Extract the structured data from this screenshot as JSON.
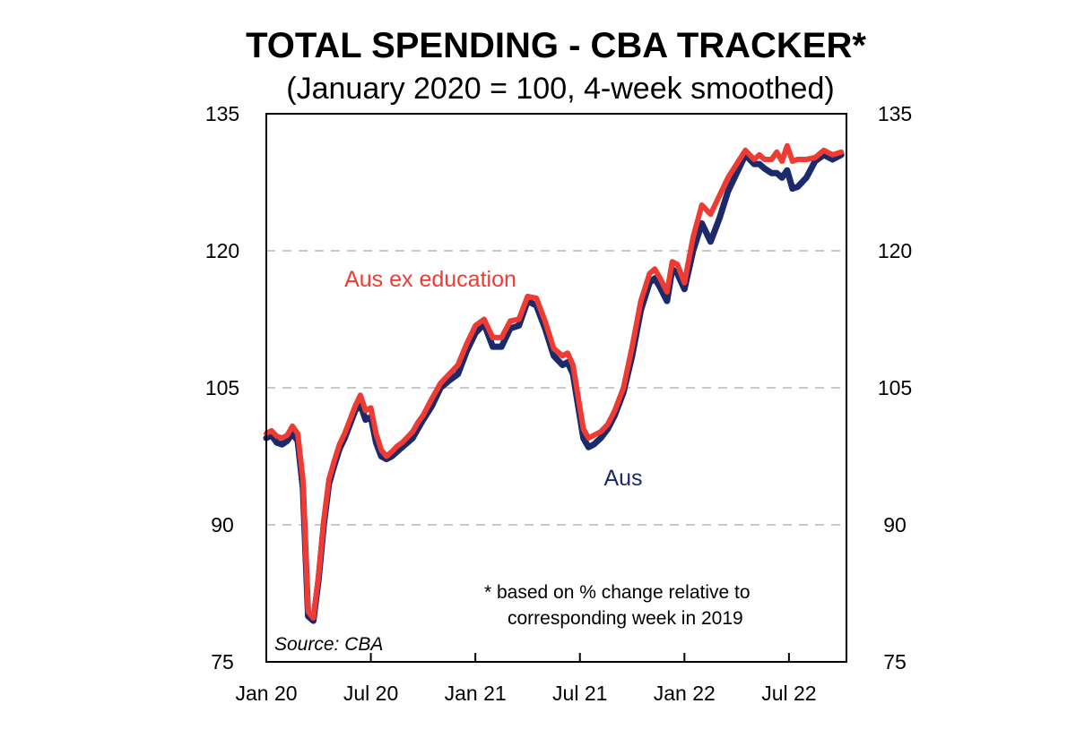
{
  "chart_data": {
    "type": "line",
    "title": "TOTAL SPENDING - CBA TRACKER*",
    "subtitle": "(January 2020 = 100, 4-week smoothed)",
    "ylim": [
      75,
      135
    ],
    "yticks": [
      "135",
      "120",
      "105",
      "90",
      "75"
    ],
    "ytick_values": [
      135,
      120,
      105,
      90,
      75
    ],
    "xticks": [
      "Jan 20",
      "Jul 20",
      "Jan 21",
      "Jul 21",
      "Jan 22",
      "Jul 22"
    ],
    "xtick_months": [
      0,
      6,
      12,
      18,
      24,
      30
    ],
    "xlim_months": [
      0,
      33.3
    ],
    "grid": "horizontal dashed at 90, 105, 120",
    "note": "*  based on % change relative to corresponding week in 2019",
    "note_line1": "*  based on % change relative to",
    "note_line2": "corresponding week in 2019",
    "source": "Source: CBA",
    "series": [
      {
        "name": "Aus",
        "color": "#1b2a6b",
        "x": [
          0.0,
          0.3,
          0.6,
          0.9,
          1.2,
          1.5,
          1.8,
          2.1,
          2.4,
          2.7,
          3.0,
          3.3,
          3.6,
          3.9,
          4.2,
          4.5,
          4.8,
          5.1,
          5.4,
          5.7,
          6.0,
          6.3,
          6.6,
          6.9,
          7.2,
          7.5,
          7.8,
          8.1,
          8.4,
          8.7,
          9.0,
          9.5,
          10.0,
          10.5,
          11.0,
          11.5,
          12.0,
          12.5,
          13.0,
          13.5,
          14.0,
          14.5,
          15.0,
          15.5,
          16.0,
          16.5,
          17.0,
          17.3,
          17.6,
          17.9,
          18.2,
          18.5,
          18.8,
          19.2,
          19.6,
          20.0,
          20.5,
          21.0,
          21.5,
          22.0,
          22.3,
          22.6,
          23.0,
          23.3,
          23.6,
          24.0,
          24.5,
          25.0,
          25.5,
          26.0,
          26.5,
          27.0,
          27.5,
          28.0,
          28.3,
          28.6,
          29.0,
          29.3,
          29.6,
          29.9,
          30.2,
          30.5,
          31.0,
          31.5,
          32.0,
          32.5,
          33.0
        ],
        "values": [
          99.5,
          99.8,
          99.0,
          98.8,
          99.2,
          100.0,
          99.2,
          94.0,
          80.0,
          79.5,
          84.0,
          90.0,
          94.5,
          96.5,
          98.3,
          99.5,
          101.0,
          102.5,
          103.2,
          101.5,
          101.8,
          99.0,
          97.5,
          97.2,
          97.5,
          98.0,
          98.5,
          99.0,
          99.5,
          100.5,
          101.5,
          103.0,
          105.0,
          105.8,
          106.5,
          109.0,
          111.0,
          112.0,
          109.5,
          109.5,
          111.5,
          111.8,
          114.5,
          114.0,
          111.5,
          108.5,
          107.5,
          107.8,
          106.5,
          103.0,
          99.5,
          98.5,
          98.8,
          99.5,
          100.5,
          102.0,
          104.5,
          108.5,
          113.5,
          116.5,
          117.0,
          116.0,
          114.5,
          118.0,
          117.5,
          115.8,
          120.0,
          123.0,
          121.0,
          123.5,
          126.5,
          128.5,
          130.5,
          129.5,
          129.5,
          129.0,
          128.5,
          128.5,
          128.0,
          128.8,
          126.8,
          127.0,
          128.0,
          129.8,
          130.5,
          130.0,
          130.5
        ]
      },
      {
        "name": "Aus ex education",
        "color": "#ee3b33",
        "x": [
          0.0,
          0.3,
          0.6,
          0.9,
          1.2,
          1.5,
          1.8,
          2.1,
          2.4,
          2.7,
          3.0,
          3.3,
          3.6,
          3.9,
          4.2,
          4.5,
          4.8,
          5.1,
          5.4,
          5.7,
          6.0,
          6.3,
          6.6,
          6.9,
          7.2,
          7.5,
          7.8,
          8.1,
          8.4,
          8.7,
          9.0,
          9.5,
          10.0,
          10.5,
          11.0,
          11.5,
          12.0,
          12.5,
          13.0,
          13.5,
          14.0,
          14.5,
          15.0,
          15.5,
          16.0,
          16.5,
          17.0,
          17.3,
          17.6,
          17.9,
          18.2,
          18.5,
          18.8,
          19.2,
          19.6,
          20.0,
          20.5,
          21.0,
          21.5,
          22.0,
          22.3,
          22.6,
          23.0,
          23.3,
          23.6,
          24.0,
          24.5,
          25.0,
          25.5,
          26.0,
          26.5,
          27.0,
          27.5,
          28.0,
          28.3,
          28.6,
          29.0,
          29.3,
          29.6,
          29.9,
          30.2,
          30.5,
          31.0,
          31.5,
          32.0,
          32.5,
          33.0
        ],
        "values": [
          100.0,
          100.3,
          99.7,
          99.5,
          99.8,
          100.8,
          100.0,
          95.0,
          80.5,
          79.8,
          84.5,
          90.5,
          95.0,
          97.0,
          98.8,
          100.0,
          101.5,
          103.0,
          104.2,
          102.5,
          102.8,
          100.0,
          98.2,
          97.5,
          98.0,
          98.6,
          99.0,
          99.6,
          100.2,
          101.2,
          102.0,
          103.8,
          105.5,
          106.5,
          107.5,
          109.8,
          111.8,
          112.5,
          110.5,
          110.5,
          112.3,
          112.5,
          115.0,
          114.8,
          112.3,
          109.3,
          108.5,
          108.8,
          107.5,
          104.0,
          100.5,
          99.5,
          99.8,
          100.2,
          101.0,
          102.5,
          105.0,
          109.5,
          114.5,
          117.5,
          118.0,
          117.0,
          115.5,
          118.8,
          118.5,
          116.5,
          121.5,
          125.0,
          124.0,
          126.0,
          128.0,
          129.5,
          131.0,
          130.0,
          130.5,
          130.0,
          130.0,
          130.8,
          129.8,
          131.5,
          129.8,
          130.0,
          130.0,
          130.2,
          131.0,
          130.5,
          130.8
        ]
      }
    ]
  }
}
